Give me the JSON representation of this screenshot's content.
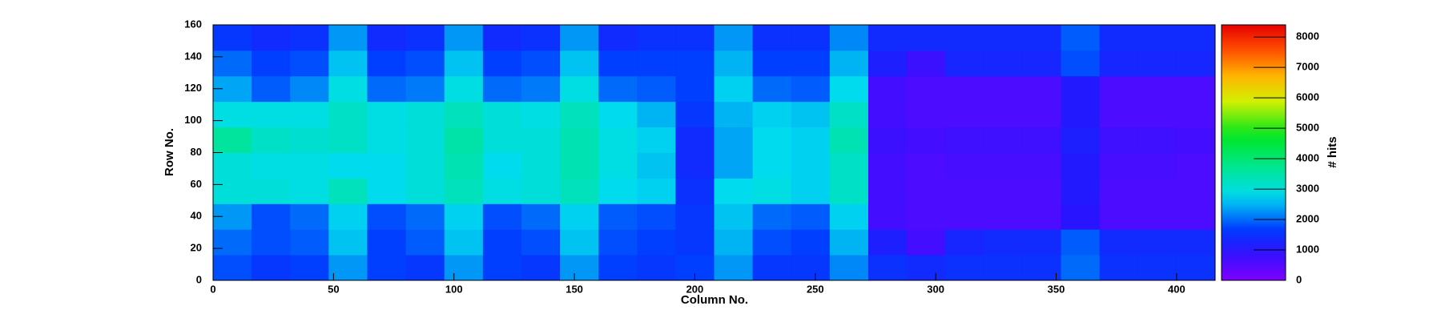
{
  "chart_data": {
    "type": "heatmap",
    "x_label": "Column No.",
    "y_label": "Row No.",
    "z_label": "# hits",
    "xlim": [
      0,
      416
    ],
    "ylim": [
      0,
      160
    ],
    "zlim": [
      0,
      8400
    ],
    "xticks": [
      0,
      50,
      100,
      150,
      200,
      250,
      300,
      350,
      400
    ],
    "yticks": [
      0,
      20,
      40,
      60,
      80,
      100,
      120,
      140,
      160
    ],
    "zticks": [
      0,
      1000,
      2000,
      3000,
      4000,
      5000,
      6000,
      7000,
      8000
    ],
    "x_bins": [
      0,
      16,
      32,
      48,
      64,
      80,
      96,
      112,
      128,
      144,
      160,
      176,
      192,
      208,
      224,
      240,
      256,
      272,
      288,
      304,
      320,
      336,
      352,
      368,
      384,
      400,
      416
    ],
    "y_bins": [
      0,
      16,
      32,
      48,
      64,
      80,
      96,
      112,
      128,
      144,
      160
    ],
    "z": [
      [
        1800,
        1600,
        1700,
        2300,
        1700,
        1600,
        2300,
        1700,
        1600,
        2300,
        1700,
        1600,
        1700,
        2300,
        1600,
        1600,
        2200,
        1500,
        1400,
        1500,
        1500,
        1500,
        2000,
        1500,
        1500,
        1500
      ],
      [
        2000,
        1800,
        1900,
        2600,
        1700,
        1900,
        2600,
        1700,
        1800,
        2600,
        1800,
        1700,
        1600,
        2500,
        1800,
        1700,
        2500,
        1200,
        700,
        1300,
        1400,
        1400,
        1900,
        1400,
        1400,
        1400
      ],
      [
        2300,
        1800,
        2000,
        2700,
        1800,
        2000,
        2700,
        1800,
        2000,
        2700,
        1900,
        1800,
        1600,
        2600,
        2000,
        1900,
        2700,
        700,
        600,
        600,
        600,
        600,
        1000,
        600,
        600,
        600
      ],
      [
        3000,
        3000,
        2900,
        3300,
        2800,
        3000,
        3300,
        2900,
        3000,
        3300,
        2800,
        2700,
        1500,
        2800,
        2900,
        2700,
        3200,
        700,
        600,
        600,
        600,
        600,
        1100,
        600,
        600,
        600
      ],
      [
        3000,
        2900,
        2900,
        2800,
        2800,
        3000,
        3400,
        2800,
        3000,
        3400,
        2900,
        2600,
        1400,
        2400,
        2800,
        2700,
        3200,
        700,
        600,
        650,
        650,
        650,
        1100,
        650,
        650,
        600
      ],
      [
        3600,
        3200,
        3100,
        3200,
        2900,
        3000,
        3500,
        3000,
        3000,
        3400,
        2900,
        2700,
        1400,
        2400,
        2800,
        2700,
        3400,
        800,
        700,
        750,
        750,
        750,
        1200,
        750,
        750,
        700
      ],
      [
        2900,
        2900,
        2900,
        3200,
        2900,
        3000,
        3300,
        3000,
        2900,
        3300,
        2800,
        2500,
        1600,
        2500,
        2700,
        2600,
        3200,
        700,
        600,
        600,
        600,
        600,
        1100,
        600,
        600,
        600
      ],
      [
        2400,
        1900,
        2200,
        2900,
        2000,
        2100,
        2900,
        2000,
        2100,
        2900,
        2000,
        1900,
        1700,
        2700,
        2000,
        1900,
        2800,
        700,
        600,
        600,
        600,
        600,
        1100,
        600,
        600,
        600
      ],
      [
        2000,
        1700,
        1800,
        2600,
        1700,
        1800,
        2600,
        1700,
        1800,
        2600,
        1700,
        1700,
        1700,
        2500,
        1700,
        1700,
        2500,
        1200,
        800,
        1300,
        1300,
        1300,
        1800,
        1300,
        1300,
        1300
      ],
      [
        1600,
        1400,
        1500,
        2300,
        1400,
        1500,
        2300,
        1400,
        1500,
        2300,
        1400,
        1500,
        1500,
        2300,
        1500,
        1500,
        2200,
        1400,
        1400,
        1400,
        1400,
        1400,
        1900,
        1400,
        1400,
        1400
      ]
    ]
  }
}
